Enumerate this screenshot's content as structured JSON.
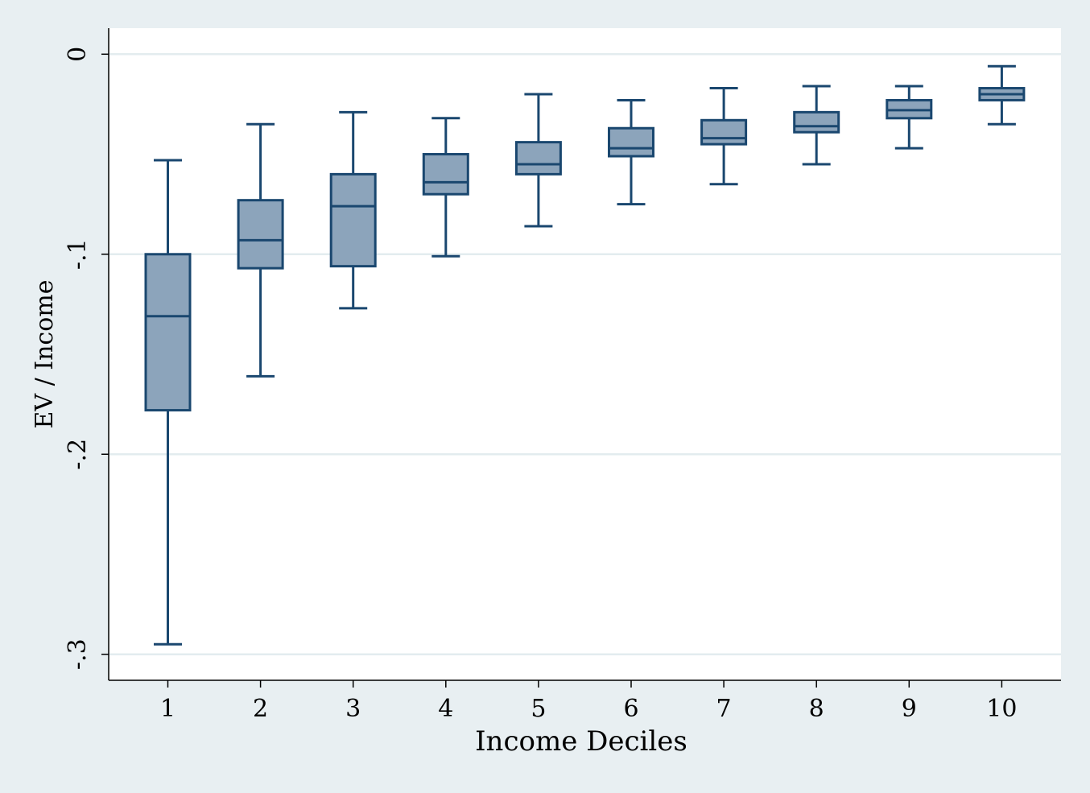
{
  "chart_data": {
    "type": "boxplot",
    "title": "",
    "xlabel": "Income Deciles",
    "ylabel": "EV / Income",
    "ylim": [
      -0.313,
      0.013
    ],
    "yticks": [
      0,
      -0.1,
      -0.2,
      -0.3
    ],
    "ytick_labels": [
      "0",
      "-.1",
      "-.2",
      "-.3"
    ],
    "categories": [
      "1",
      "2",
      "3",
      "4",
      "5",
      "6",
      "7",
      "8",
      "9",
      "10"
    ],
    "boxes": [
      {
        "category": "1",
        "whisker_low": -0.295,
        "q1": -0.178,
        "median": -0.131,
        "q3": -0.1,
        "whisker_high": -0.053
      },
      {
        "category": "2",
        "whisker_low": -0.161,
        "q1": -0.107,
        "median": -0.093,
        "q3": -0.073,
        "whisker_high": -0.035
      },
      {
        "category": "3",
        "whisker_low": -0.127,
        "q1": -0.106,
        "median": -0.076,
        "q3": -0.06,
        "whisker_high": -0.029
      },
      {
        "category": "4",
        "whisker_low": -0.101,
        "q1": -0.07,
        "median": -0.064,
        "q3": -0.05,
        "whisker_high": -0.032
      },
      {
        "category": "5",
        "whisker_low": -0.086,
        "q1": -0.06,
        "median": -0.055,
        "q3": -0.044,
        "whisker_high": -0.02
      },
      {
        "category": "6",
        "whisker_low": -0.075,
        "q1": -0.051,
        "median": -0.047,
        "q3": -0.037,
        "whisker_high": -0.023
      },
      {
        "category": "7",
        "whisker_low": -0.065,
        "q1": -0.045,
        "median": -0.042,
        "q3": -0.033,
        "whisker_high": -0.017
      },
      {
        "category": "8",
        "whisker_low": -0.055,
        "q1": -0.039,
        "median": -0.036,
        "q3": -0.029,
        "whisker_high": -0.016
      },
      {
        "category": "9",
        "whisker_low": -0.047,
        "q1": -0.032,
        "median": -0.028,
        "q3": -0.023,
        "whisker_high": -0.016
      },
      {
        "category": "10",
        "whisker_low": -0.035,
        "q1": -0.023,
        "median": -0.02,
        "q3": -0.017,
        "whisker_high": -0.006
      }
    ],
    "grid": true,
    "legend": "none",
    "colors": {
      "page_background": "#e8eff2",
      "plot_background": "#ffffff",
      "box_fill": "#8ca4bb",
      "box_stroke": "#1a476f",
      "grid": "#e3ecef",
      "axis": "#000000"
    }
  }
}
